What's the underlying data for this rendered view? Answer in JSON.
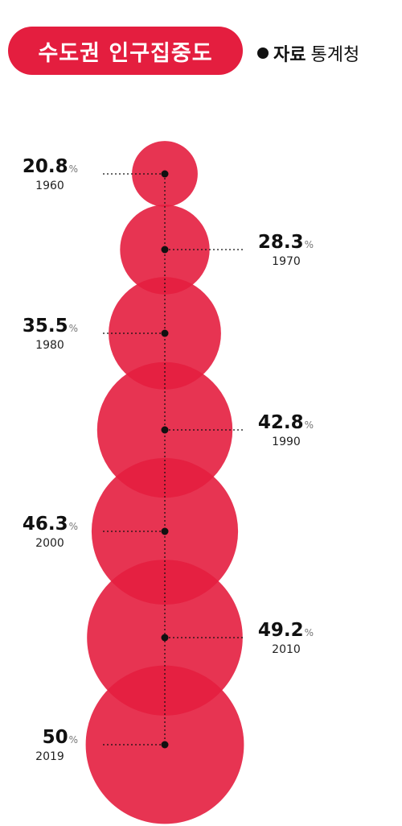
{
  "header": {
    "title": "수도권 인구집중도",
    "source_label": "자료",
    "source_value": "통계청"
  },
  "colors": {
    "accent": "#e41e3f",
    "bubble": "#e41e3f"
  },
  "chart_data": {
    "type": "bubble",
    "title": "수도권 인구집중도",
    "unit": "%",
    "categories": [
      "1960",
      "1970",
      "1980",
      "1990",
      "2000",
      "2010",
      "2019"
    ],
    "values": [
      20.8,
      28.3,
      35.5,
      42.8,
      46.3,
      49.2,
      50
    ],
    "value_labels": [
      "20.8",
      "28.3",
      "35.5",
      "42.8",
      "46.3",
      "49.2",
      "50"
    ],
    "label_sides": [
      "left",
      "right",
      "left",
      "right",
      "left",
      "right",
      "left"
    ]
  }
}
